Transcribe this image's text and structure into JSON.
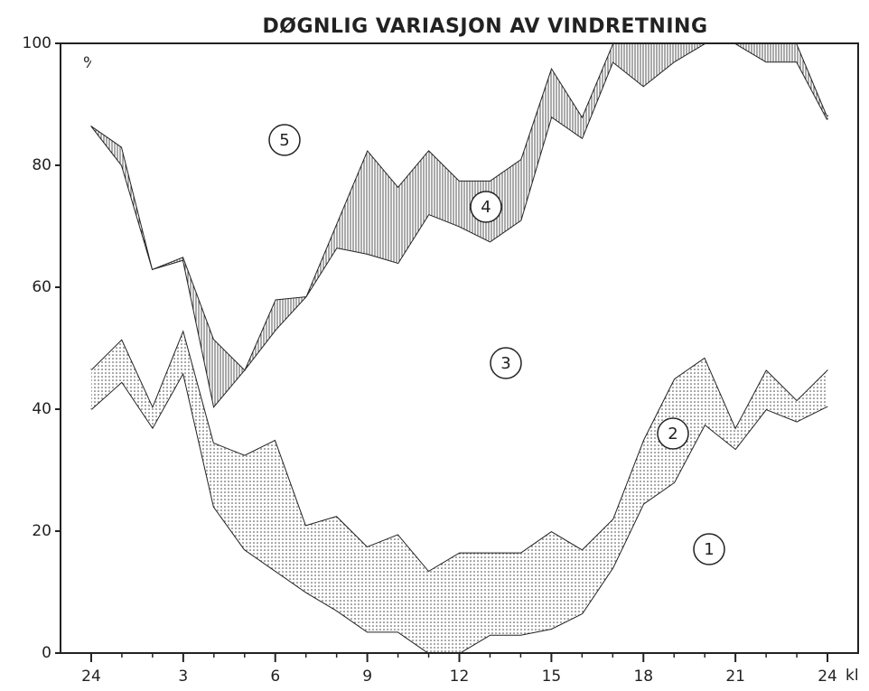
{
  "chart_data": {
    "type": "stacked_area",
    "title": "DØGNLIG VARIASJON AV VINDRETNING",
    "y_label": "%",
    "x_label": "kl",
    "x": [
      0,
      1,
      2,
      3,
      4,
      5,
      6,
      7,
      8,
      9,
      10,
      11,
      12,
      13,
      14,
      15,
      16,
      17,
      18,
      19,
      20,
      21,
      22,
      23,
      24
    ],
    "series": [
      {
        "name": "1",
        "pattern": "none",
        "color": "#222",
        "values": [
          40,
          44.5,
          37,
          46,
          24,
          17,
          13.5,
          10,
          7,
          3.5,
          3.5,
          0,
          0,
          3,
          3,
          4,
          6.5,
          14,
          24.5,
          28,
          37.5,
          33.5,
          40,
          38,
          40.5
        ]
      },
      {
        "name": "2",
        "pattern": "dots",
        "color": "#222",
        "values": [
          6.5,
          7,
          3.5,
          7,
          10.5,
          15.5,
          21.5,
          11,
          15.5,
          14,
          16,
          13.5,
          16.5,
          13.5,
          13.5,
          16,
          10.5,
          8,
          10.5,
          17,
          11,
          3.5,
          6.5,
          3.5,
          6
        ]
      },
      {
        "name": "3",
        "pattern": "none",
        "color": "#222",
        "values": [
          40,
          28.5,
          22.5,
          11.5,
          6,
          14,
          18,
          37.5,
          44,
          48,
          44.5,
          58.5,
          53.5,
          51,
          54.5,
          68,
          67.5,
          75,
          58,
          52,
          51.5,
          63,
          50.5,
          55.5,
          41
        ]
      },
      {
        "name": "4",
        "pattern": "hatch",
        "color": "#222",
        "values": [
          0,
          3,
          0,
          0.5,
          11,
          0,
          5,
          0,
          4,
          17,
          12.5,
          10.5,
          7.5,
          10,
          10,
          8,
          3.5,
          3,
          7,
          3,
          0,
          0,
          3,
          3,
          0.5
        ]
      },
      {
        "name": "5",
        "pattern": "none",
        "color": "#222",
        "values": [
          13.5,
          17,
          37,
          35,
          48.5,
          53.5,
          42,
          41.5,
          29.5,
          17.5,
          23.5,
          17.5,
          22.5,
          22.5,
          19,
          4,
          12,
          0,
          0,
          0,
          0,
          0,
          0,
          0,
          12
        ]
      }
    ],
    "xlim": [
      -1,
      25
    ],
    "ylim": [
      0,
      100
    ],
    "xticks": [
      {
        "value": 0,
        "label": "24"
      },
      3,
      6,
      9,
      12,
      15,
      18,
      21,
      24
    ],
    "yticks": [
      0,
      20,
      40,
      60,
      80,
      100
    ]
  }
}
